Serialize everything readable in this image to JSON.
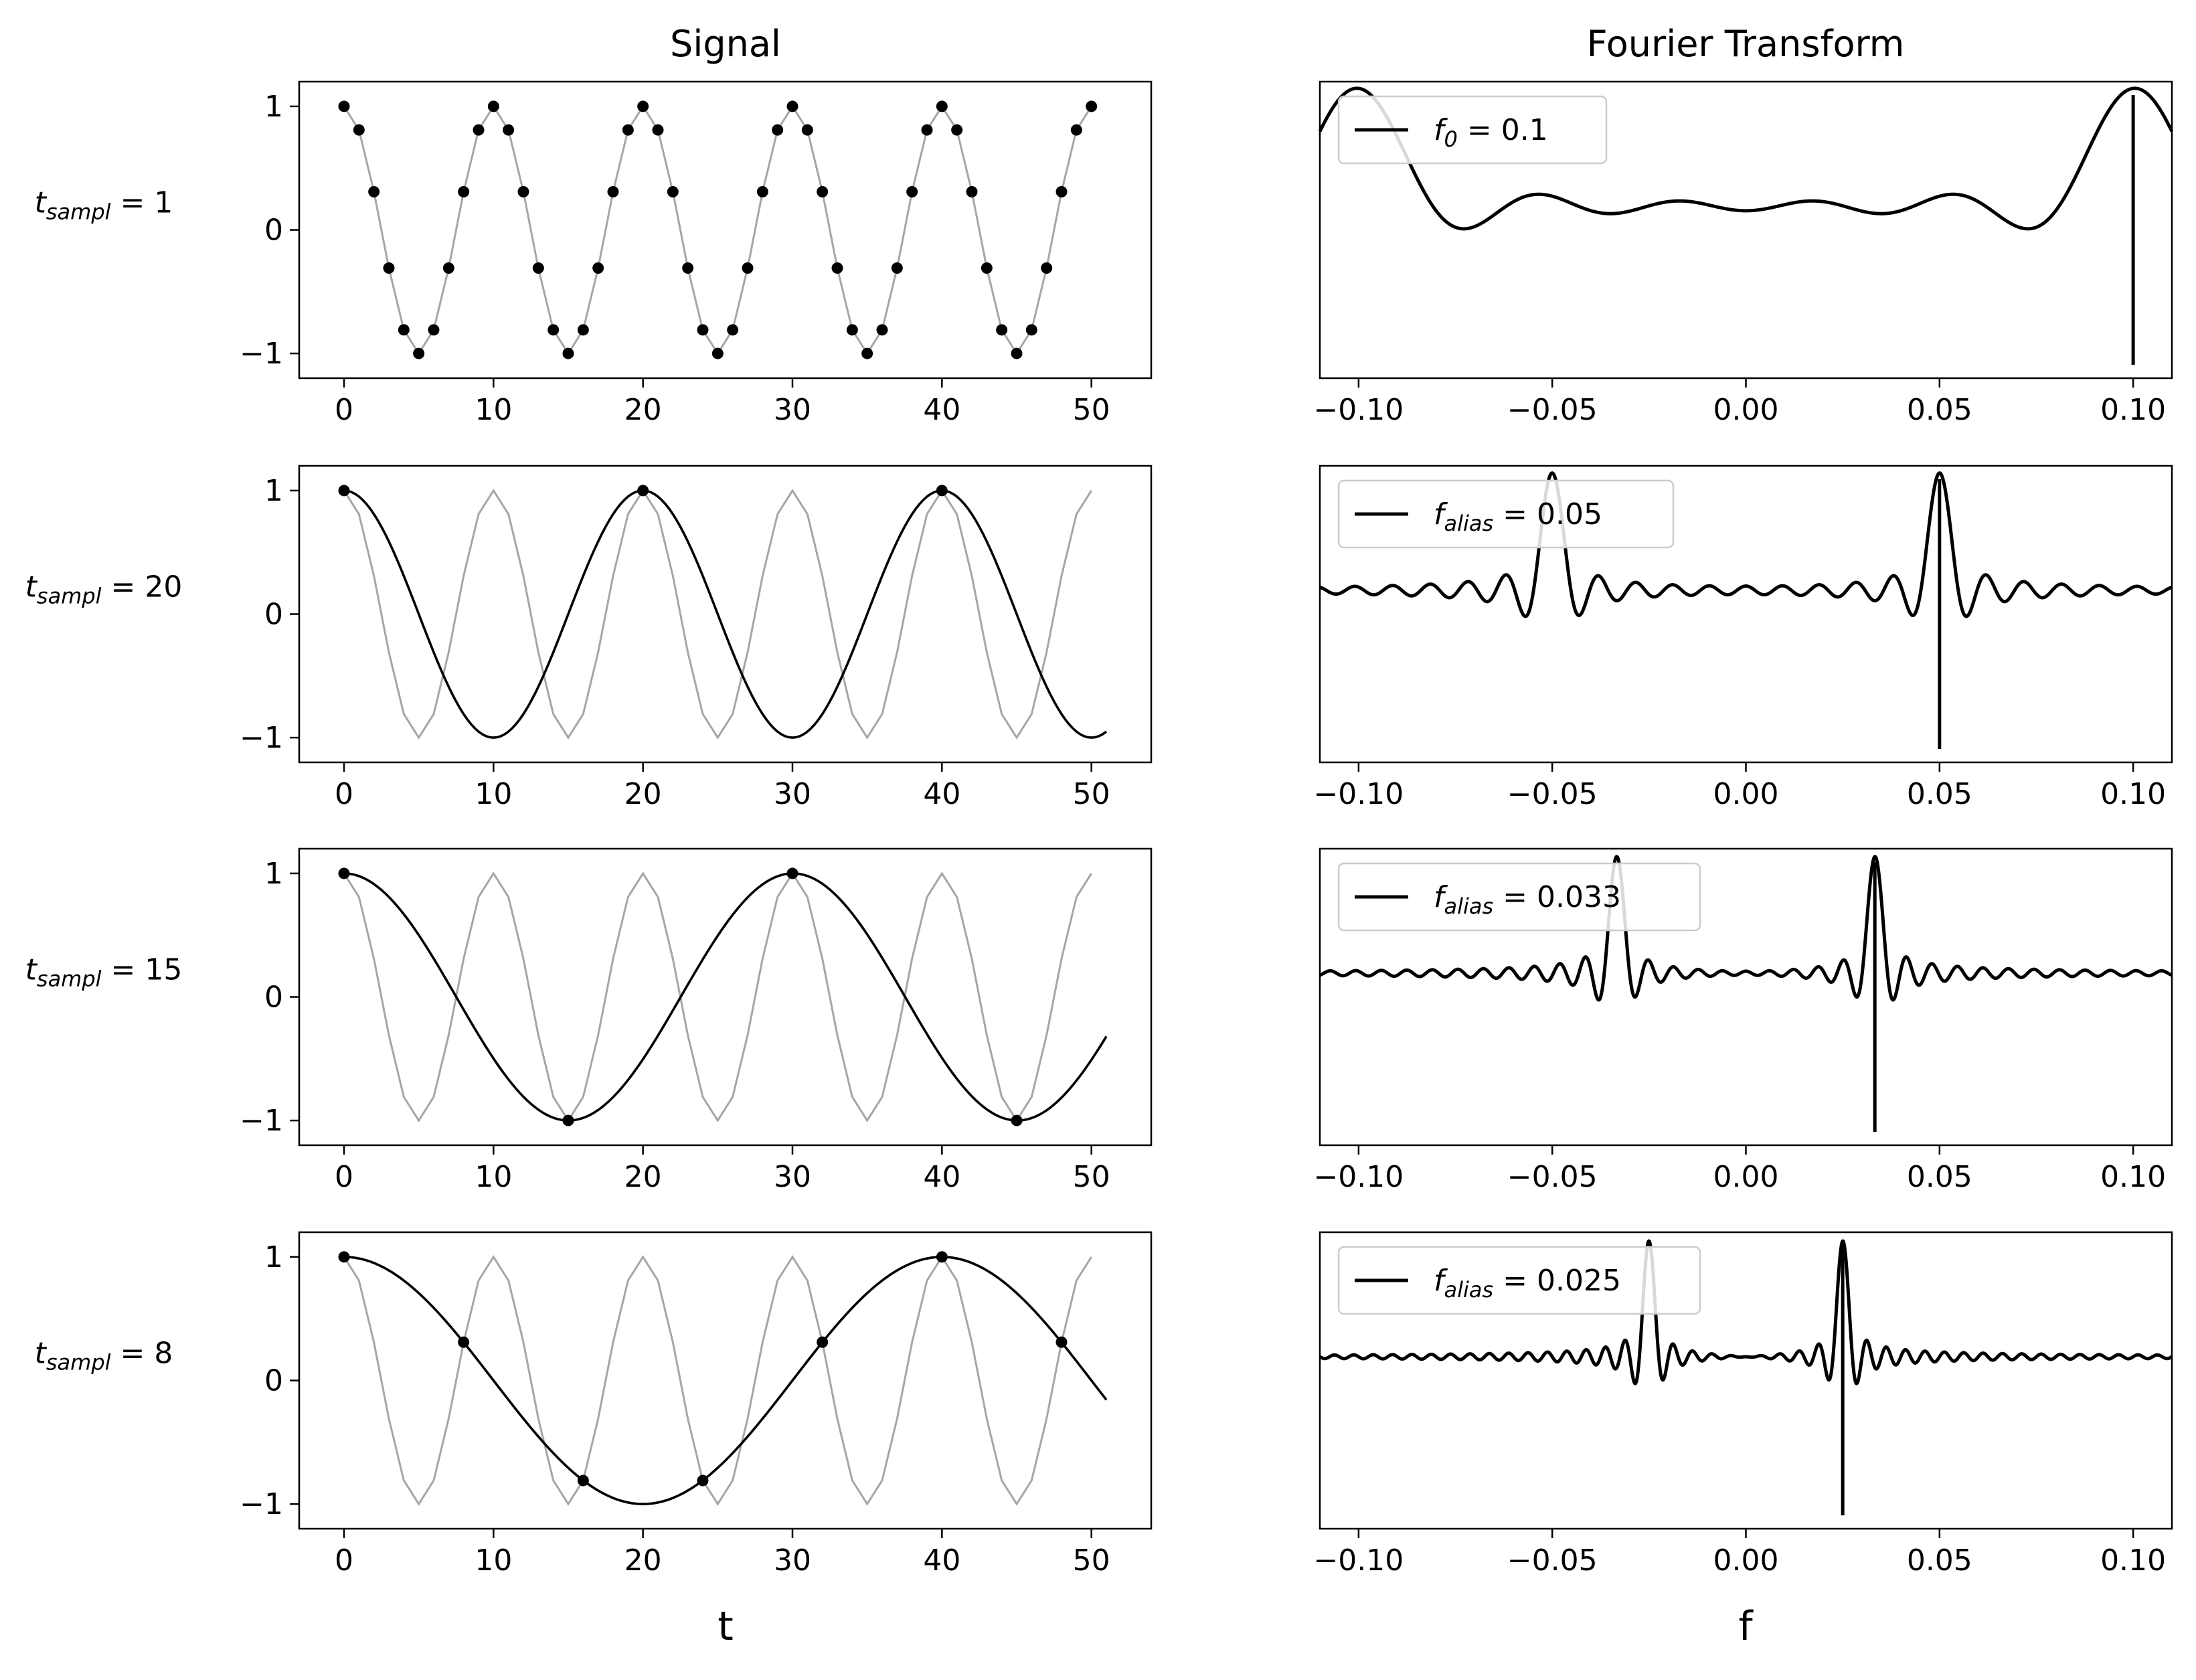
{
  "column_titles": {
    "signal": "Signal",
    "fourier": "Fourier Transform"
  },
  "x_titles": {
    "signal": "t",
    "fourier": "f"
  },
  "colors": {
    "curve": "#000000",
    "original": "#a6a6a6",
    "background": "#ffffff"
  },
  "rows": [
    {
      "label_var": "t",
      "label_sub": "sampl",
      "label_eq": " = 1"
    },
    {
      "label_var": "t",
      "label_sub": "sampl",
      "label_eq": " = 20"
    },
    {
      "label_var": "t",
      "label_sub": "sampl",
      "label_eq": " =  15"
    },
    {
      "label_var": "t",
      "label_sub": "sampl",
      "label_eq": " =  8"
    }
  ],
  "signal_ticks": {
    "x": [
      "0",
      "10",
      "20",
      "30",
      "40",
      "50"
    ],
    "y": [
      "1",
      "0",
      "−1"
    ]
  },
  "fourier_ticks": {
    "x": [
      "−0.10",
      "−0.05",
      "0.00",
      "0.05",
      "0.10"
    ]
  },
  "legends": [
    {
      "var": "f",
      "sub": "0",
      "eq": " = 0.1"
    },
    {
      "var": "f",
      "sub": "alias",
      "eq": " = 0.05"
    },
    {
      "var": "f",
      "sub": "alias",
      "eq": " = 0.033"
    },
    {
      "var": "f",
      "sub": "alias",
      "eq": " = 0.025"
    }
  ],
  "chart_data": [
    {
      "type": "line",
      "panel": "signal",
      "row": 1,
      "xlim": [
        -3,
        54
      ],
      "ylim": [
        -1.2,
        1.2
      ],
      "series": [
        {
          "role": "original",
          "function": "cos(2*pi*0.1*t)",
          "t_range": [
            0,
            50
          ],
          "t_step": 1
        },
        {
          "role": "samples",
          "sampling_interval": 1,
          "t_range": [
            0,
            50
          ],
          "y": [
            1,
            0.81,
            0.31,
            -0.31,
            -0.81,
            -1,
            -0.81,
            -0.31,
            0.31,
            0.81,
            1
          ]
        }
      ]
    },
    {
      "type": "line",
      "panel": "signal",
      "row": 2,
      "xlim": [
        -3,
        54
      ],
      "ylim": [
        -1.2,
        1.2
      ],
      "series": [
        {
          "role": "original",
          "function": "cos(2*pi*0.1*t)",
          "t_range": [
            0,
            50
          ],
          "t_step": 1
        },
        {
          "role": "alias",
          "function": "cos(2*pi*0.05*t)",
          "t_range": [
            0,
            51
          ]
        },
        {
          "role": "samples",
          "x": [
            0,
            20,
            40
          ],
          "y": [
            1,
            1,
            1
          ]
        }
      ]
    },
    {
      "type": "line",
      "panel": "signal",
      "row": 3,
      "xlim": [
        -3,
        54
      ],
      "ylim": [
        -1.2,
        1.2
      ],
      "series": [
        {
          "role": "original",
          "function": "cos(2*pi*0.1*t)",
          "t_range": [
            0,
            50
          ],
          "t_step": 1
        },
        {
          "role": "alias",
          "function": "cos(2*pi*0.0333*t)",
          "t_range": [
            0,
            51
          ]
        },
        {
          "role": "samples",
          "x": [
            0,
            15,
            30,
            45
          ],
          "y": [
            1,
            -1,
            1,
            -1
          ]
        }
      ]
    },
    {
      "type": "line",
      "panel": "signal",
      "row": 4,
      "xlim": [
        -3,
        54
      ],
      "ylim": [
        -1.2,
        1.2
      ],
      "series": [
        {
          "role": "original",
          "function": "cos(2*pi*0.1*t)",
          "t_range": [
            0,
            50
          ],
          "t_step": 1
        },
        {
          "role": "alias",
          "function": "cos(2*pi*0.025*t)",
          "t_range": [
            0,
            51
          ]
        },
        {
          "role": "samples",
          "x": [
            0,
            8,
            16,
            24,
            32,
            40,
            48
          ],
          "y": [
            1,
            0.31,
            -0.81,
            -0.81,
            0.31,
            1,
            0.31
          ]
        }
      ]
    },
    {
      "type": "line",
      "panel": "fourier",
      "row": 1,
      "xlim": [
        -0.11,
        0.11
      ],
      "series": [
        {
          "name": "f0 = 0.1",
          "peaks": [
            -0.1,
            0.1
          ],
          "marker": 0.1,
          "lobe_width": 0.0196,
          "sidelobe_ripples": 16
        }
      ]
    },
    {
      "type": "line",
      "panel": "fourier",
      "row": 2,
      "xlim": [
        -0.11,
        0.11
      ],
      "series": [
        {
          "name": "f_alias = 0.05",
          "peaks": [
            -0.05,
            0.05
          ],
          "marker": 0.05,
          "lobe_width": 0.0049,
          "sidelobe_ripples": 45
        }
      ]
    },
    {
      "type": "line",
      "panel": "fourier",
      "row": 3,
      "xlim": [
        -0.11,
        0.11
      ],
      "series": [
        {
          "name": "f_alias = 0.033",
          "peaks": [
            -0.0333,
            0.0333
          ],
          "marker": 0.0333,
          "lobe_width": 0.0033,
          "sidelobe_ripples": 67
        }
      ]
    },
    {
      "type": "line",
      "panel": "fourier",
      "row": 4,
      "xlim": [
        -0.11,
        0.11
      ],
      "series": [
        {
          "name": "f_alias = 0.025",
          "peaks": [
            -0.025,
            0.025
          ],
          "marker": 0.025,
          "lobe_width": 0.0025,
          "sidelobe_ripples": 89
        }
      ]
    }
  ]
}
